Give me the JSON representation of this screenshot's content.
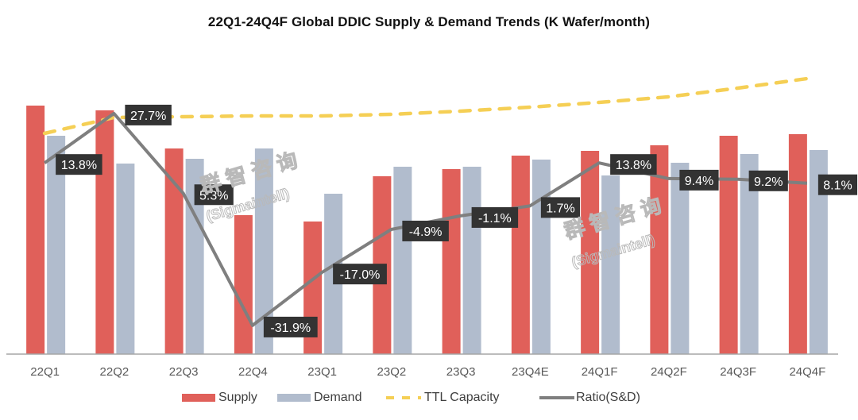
{
  "chart_data": {
    "type": "bar",
    "title": "22Q1-24Q4F Global DDIC Supply & Demand Trends (K Wafer/month)",
    "xlabel": "",
    "ylabel": "",
    "y_axis_note": "Primary axis unlabeled; bar and capacity values estimated in relative units (0 at baseline)",
    "ylim": [
      0,
      360
    ],
    "categories": [
      "22Q1",
      "22Q2",
      "22Q3",
      "22Q4",
      "23Q1",
      "23Q2",
      "23Q3",
      "23Q4E",
      "24Q1F",
      "24Q2F",
      "24Q3F",
      "24Q4F"
    ],
    "series": [
      {
        "name": "Supply",
        "type": "bar",
        "color": "#e0605a",
        "values": [
          313,
          307,
          259,
          175,
          167,
          224,
          233,
          250,
          256,
          263,
          275,
          277
        ]
      },
      {
        "name": "Demand",
        "type": "bar",
        "color": "#b1bccd",
        "values": [
          275,
          240,
          246,
          259,
          202,
          236,
          236,
          245,
          225,
          241,
          252,
          257
        ]
      },
      {
        "name": "TTL Capacity",
        "type": "line",
        "style": "dashed",
        "color": "#f5cf55",
        "values": [
          278,
          298,
          299,
          300,
          300,
          302,
          306,
          311,
          317,
          324,
          335,
          347
        ]
      },
      {
        "name": "Ratio(S&D)",
        "type": "line",
        "axis": "secondary",
        "color": "#7f7f7f",
        "unit": "%",
        "values": [
          13.8,
          27.7,
          5.3,
          -31.9,
          -17.0,
          -4.9,
          -1.1,
          1.7,
          13.8,
          9.4,
          9.2,
          8.1
        ],
        "labels": [
          "13.8%",
          "27.7%",
          "5.3%",
          "-31.9%",
          "-17.0%",
          "-4.9%",
          "-1.1%",
          "1.7%",
          "13.8%",
          "9.4%",
          "9.2%",
          "8.1%"
        ]
      }
    ],
    "secondary_ylim": [
      -40,
      60
    ],
    "grid": false,
    "legend": {
      "position": "bottom",
      "entries": [
        "Supply",
        "Demand",
        "TTL Capacity",
        "Ratio(S&D)"
      ]
    }
  },
  "watermark": {
    "cn": "群 智 咨 询",
    "en": "(Sigmaintell)"
  }
}
